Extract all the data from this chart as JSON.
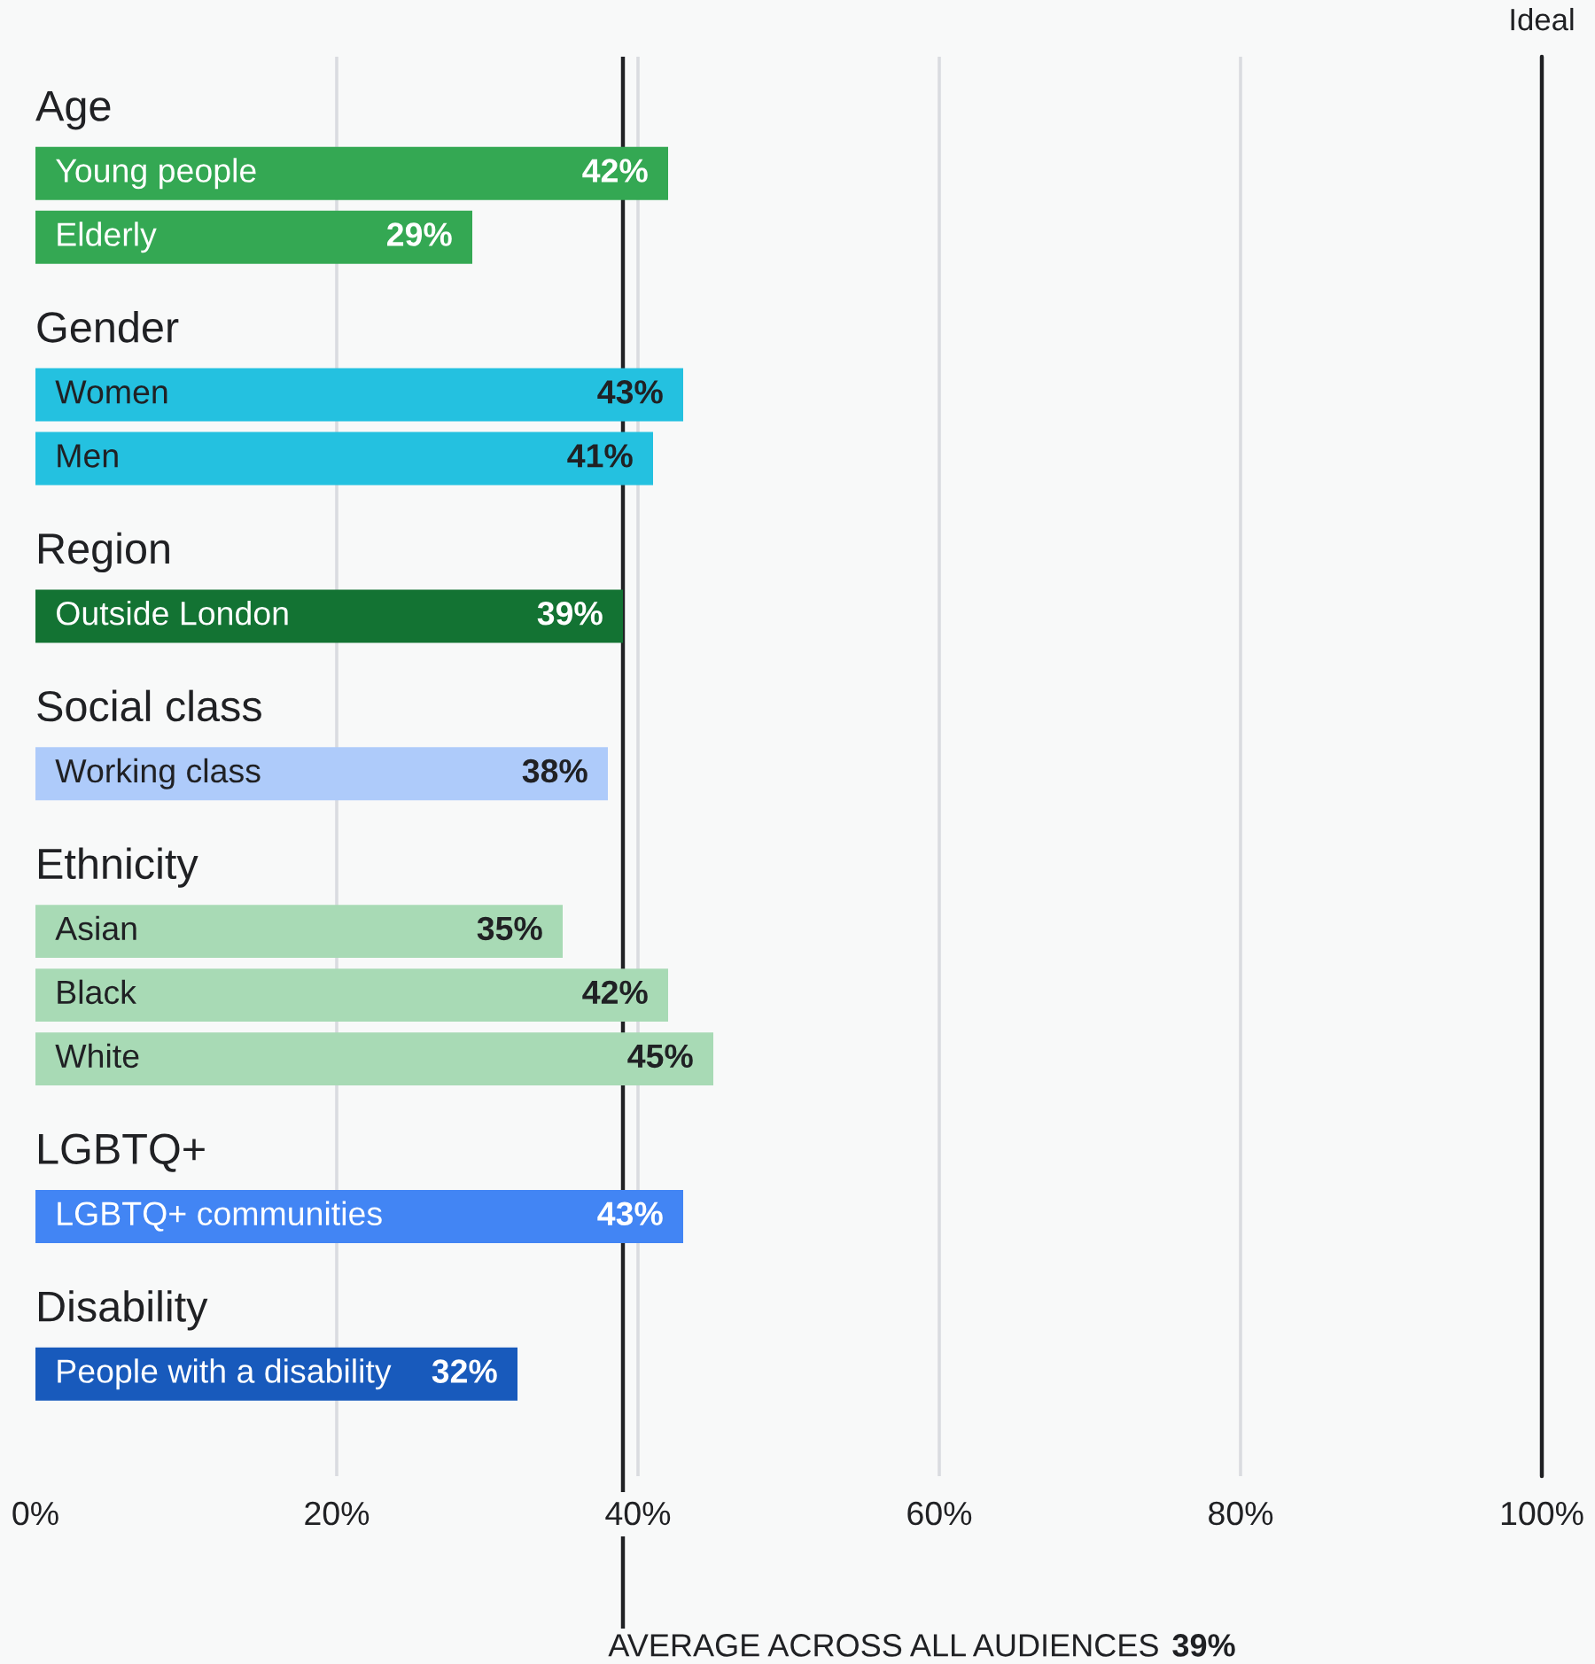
{
  "chart_data": {
    "type": "bar",
    "orientation": "horizontal",
    "categories": [
      "Age",
      "Young people",
      "Elderly",
      "Gender",
      "Women",
      "Men",
      "Region",
      "Outside London",
      "Social class",
      "Working class",
      "Ethnicity",
      "Asian",
      "Black",
      "White",
      "LGBTQ+",
      "LGBTQ+ communities",
      "Disability",
      "People with a disability"
    ],
    "values": [
      null,
      42,
      29,
      null,
      43,
      41,
      null,
      39,
      null,
      38,
      null,
      35,
      42,
      45,
      null,
      43,
      null,
      32
    ],
    "colors": [
      null,
      "#34a853",
      "#34a853",
      null,
      "#24c1e0",
      "#24c1e0",
      null,
      "#137333",
      null,
      "#aecbfa",
      null,
      "#a8dab5",
      "#a8dab5",
      "#a8dab5",
      null,
      "#4285f4",
      null,
      "#185abc"
    ],
    "value_labels": [
      null,
      "42%",
      "29%",
      null,
      "43%",
      "41%",
      null,
      "39%",
      null,
      "38%",
      null,
      "35%",
      "42%",
      "45%",
      null,
      "43%",
      null,
      "32%"
    ],
    "xlim": [
      0,
      100
    ],
    "xticks": [
      {
        "value": 0,
        "label": "0%"
      },
      {
        "value": 20,
        "label": "20%"
      },
      {
        "value": 40,
        "label": "40%"
      },
      {
        "value": 60,
        "label": "60%"
      },
      {
        "value": 80,
        "label": "80%"
      },
      {
        "value": 100,
        "label": "100%"
      }
    ],
    "grid": "x",
    "ref_lines": [
      {
        "axis": "x",
        "value": 39,
        "label": "AVERAGE ACROSS ALL AUDIENCES 39%",
        "color": "#202124"
      },
      {
        "axis": "x",
        "value": 100,
        "label": "Ideal",
        "color": "#202124"
      }
    ]
  }
}
